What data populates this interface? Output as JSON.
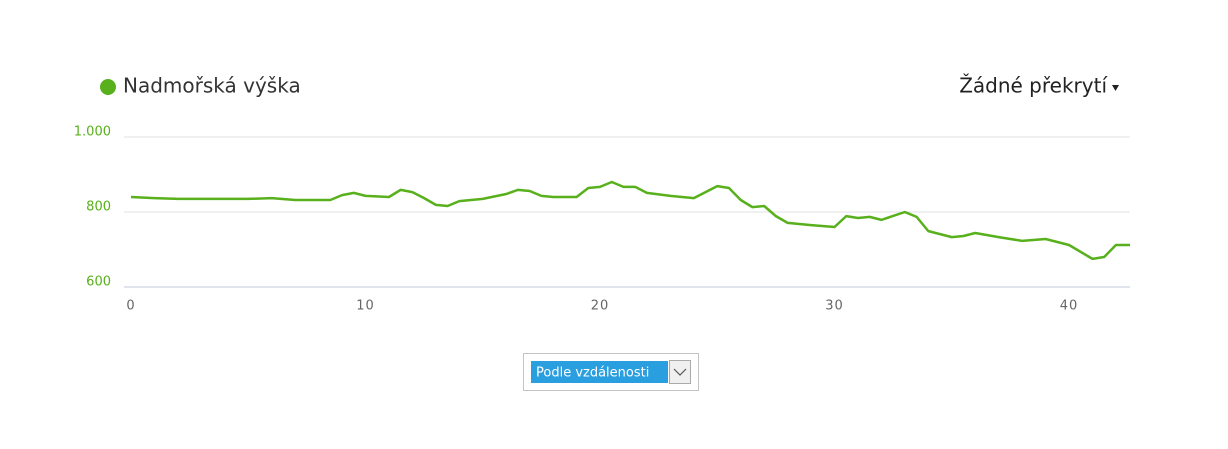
{
  "chart_data": {
    "type": "line",
    "series": [
      {
        "name": "Nadmořská výška",
        "color": "#58b01c",
        "x": [
          0,
          1,
          2,
          3,
          4,
          5,
          6,
          7,
          8,
          8.5,
          9,
          9.5,
          10,
          11,
          11.5,
          12,
          12.5,
          13,
          13.5,
          14,
          15,
          16,
          16.5,
          17,
          17.5,
          18,
          19,
          19.5,
          20,
          20.5,
          21,
          21.5,
          22,
          23,
          24,
          24.5,
          25,
          25.5,
          26,
          26.5,
          27,
          27.5,
          28,
          29,
          30,
          30.5,
          31,
          31.5,
          32,
          33,
          33.5,
          34,
          35,
          35.5,
          36,
          37,
          38,
          39,
          40,
          41,
          41.5,
          42,
          42.6
        ],
        "values": [
          840,
          837,
          835,
          835,
          835,
          835,
          837,
          832,
          832,
          832,
          845,
          851,
          843,
          840,
          859,
          853,
          837,
          819,
          816,
          829,
          835,
          848,
          859,
          856,
          843,
          840,
          840,
          864,
          867,
          880,
          867,
          867,
          851,
          843,
          837,
          853,
          869,
          864,
          832,
          813,
          816,
          789,
          771,
          765,
          760,
          789,
          784,
          787,
          779,
          800,
          787,
          749,
          733,
          736,
          744,
          733,
          723,
          728,
          712,
          675,
          680,
          712,
          712
        ]
      }
    ],
    "xlim": [
      0,
      42.6
    ],
    "xticks": [
      0,
      10,
      20,
      30,
      40
    ],
    "ylim": [
      600,
      1000
    ],
    "yticks": [
      600,
      800,
      {
        "value": 1000,
        "label": "1.000"
      }
    ],
    "grid": true
  },
  "ui": {
    "overlay_menu": "Žádné překrytí",
    "x_mode_select": "Podle vzdálenosti"
  }
}
